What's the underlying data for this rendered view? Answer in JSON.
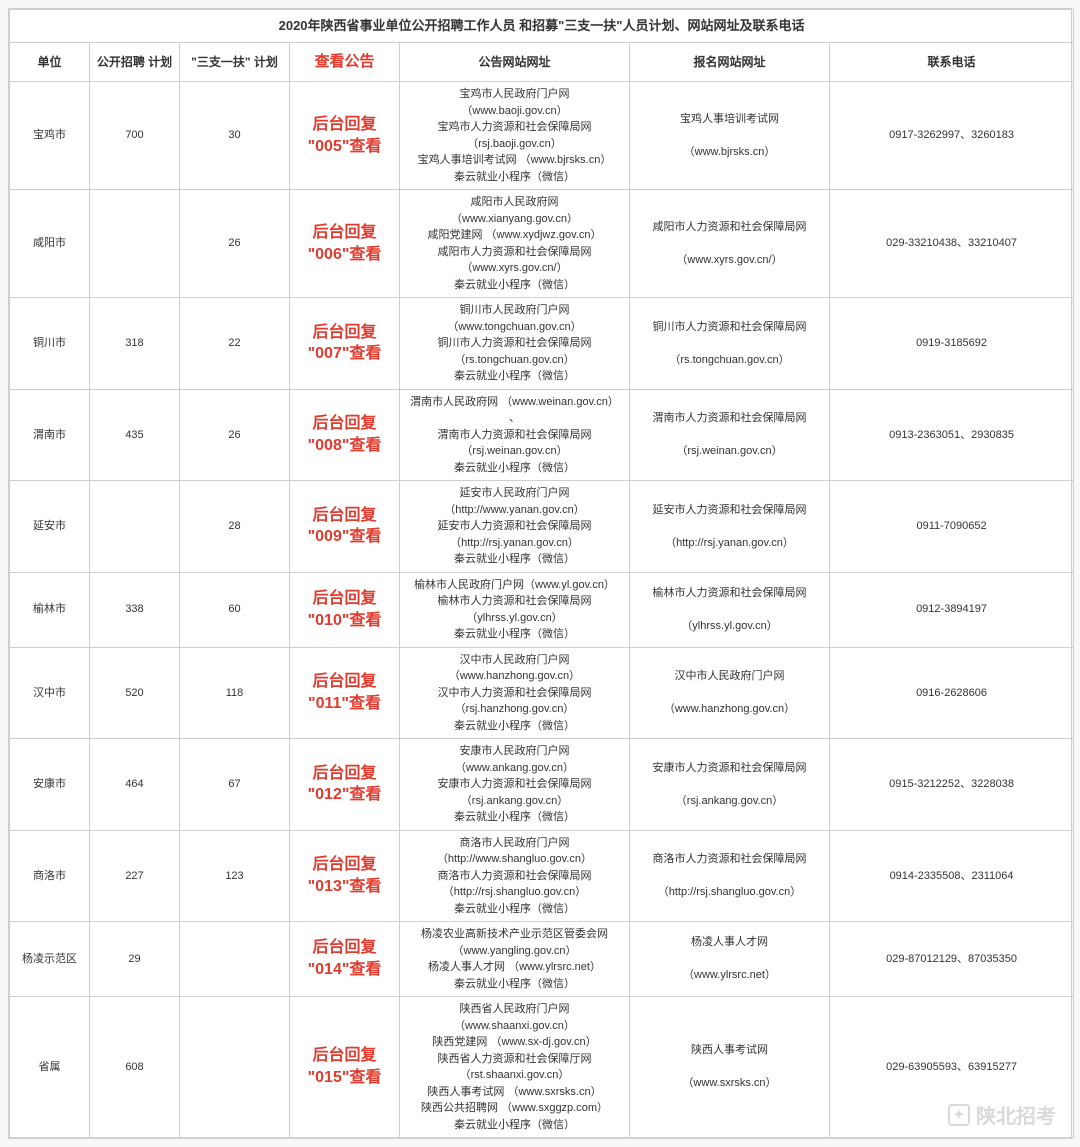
{
  "title": "2020年陕西省事业单位公开招聘工作人员 和招募\"三支一扶\"人员计划、网站网址及联系电话",
  "headers": {
    "unit": "单位",
    "public_plan": "公开招聘 计划",
    "szyf_plan": "\"三支一扶\" 计划",
    "view_notice": "查看公告",
    "notice_site": "公告网站网址",
    "signup_site": "报名网站网址",
    "phone": "联系电话"
  },
  "action_template": {
    "line1": "后台回复",
    "line2_prefix": "\"",
    "line2_suffix": "\"查看"
  },
  "rows": [
    {
      "unit": "宝鸡市",
      "public_plan": "700",
      "szyf_plan": "30",
      "code": "005",
      "notice": "宝鸡市人民政府门户网\n（www.baoji.gov.cn）\n宝鸡市人力资源和社会保障局网\n（rsj.baoji.gov.cn）\n宝鸡人事培训考试网 （www.bjrsks.cn）\n秦云就业小程序（微信）",
      "signup": "宝鸡人事培训考试网\n\n（www.bjrsks.cn）",
      "phone": "0917-3262997、3260183"
    },
    {
      "unit": "咸阳市",
      "public_plan": "",
      "szyf_plan": "26",
      "code": "006",
      "notice": "咸阳市人民政府网\n（www.xianyang.gov.cn）\n咸阳党建网 （www.xydjwz.gov.cn）\n咸阳市人力资源和社会保障局网\n（www.xyrs.gov.cn/）\n秦云就业小程序（微信）",
      "signup": "咸阳市人力资源和社会保障局网\n\n（www.xyrs.gov.cn/）",
      "phone": "029-33210438、33210407"
    },
    {
      "unit": "铜川市",
      "public_plan": "318",
      "szyf_plan": "22",
      "code": "007",
      "notice": "铜川市人民政府门户网\n（www.tongchuan.gov.cn）\n铜川市人力资源和社会保障局网\n（rs.tongchuan.gov.cn）\n秦云就业小程序（微信）",
      "signup": "铜川市人力资源和社会保障局网\n\n（rs.tongchuan.gov.cn）",
      "phone": "0919-3185692"
    },
    {
      "unit": "渭南市",
      "public_plan": "435",
      "szyf_plan": "26",
      "code": "008",
      "notice": "渭南市人民政府网 （www.weinan.gov.cn）\n、\n渭南市人力资源和社会保障局网\n（rsj.weinan.gov.cn）\n秦云就业小程序（微信）",
      "signup": "渭南市人力资源和社会保障局网\n\n（rsj.weinan.gov.cn）",
      "phone": "0913-2363051、2930835"
    },
    {
      "unit": "延安市",
      "public_plan": "",
      "szyf_plan": "28",
      "code": "009",
      "notice": "延安市人民政府门户网\n（http://www.yanan.gov.cn）\n延安市人力资源和社会保障局网\n（http://rsj.yanan.gov.cn）\n秦云就业小程序（微信）",
      "signup": "延安市人力资源和社会保障局网\n\n（http://rsj.yanan.gov.cn）",
      "phone": "0911-7090652"
    },
    {
      "unit": "榆林市",
      "public_plan": "338",
      "szyf_plan": "60",
      "code": "010",
      "notice": "榆林市人民政府门户网（www.yl.gov.cn）\n榆林市人力资源和社会保障局网\n（ylhrss.yl.gov.cn）\n秦云就业小程序（微信）",
      "signup": "榆林市人力资源和社会保障局网\n\n（ylhrss.yl.gov.cn）",
      "phone": "0912-3894197"
    },
    {
      "unit": "汉中市",
      "public_plan": "520",
      "szyf_plan": "118",
      "code": "011",
      "notice": "汉中市人民政府门户网\n（www.hanzhong.gov.cn）\n汉中市人力资源和社会保障局网\n（rsj.hanzhong.gov.cn）\n秦云就业小程序（微信）",
      "signup": "汉中市人民政府门户网\n\n（www.hanzhong.gov.cn）",
      "phone": "0916-2628606"
    },
    {
      "unit": "安康市",
      "public_plan": "464",
      "szyf_plan": "67",
      "code": "012",
      "notice": "安康市人民政府门户网\n（www.ankang.gov.cn）\n安康市人力资源和社会保障局网\n（rsj.ankang.gov.cn）\n秦云就业小程序（微信）",
      "signup": "安康市人力资源和社会保障局网\n\n（rsj.ankang.gov.cn）",
      "phone": "0915-3212252、3228038"
    },
    {
      "unit": "商洛市",
      "public_plan": "227",
      "szyf_plan": "123",
      "code": "013",
      "notice": "商洛市人民政府门户网\n（http://www.shangluo.gov.cn）\n商洛市人力资源和社会保障局网\n（http://rsj.shangluo.gov.cn）\n秦云就业小程序（微信）",
      "signup": "商洛市人力资源和社会保障局网\n\n（http://rsj.shangluo.gov.cn）",
      "phone": "0914-2335508、2311064"
    },
    {
      "unit": "杨凌示范区",
      "public_plan": "29",
      "szyf_plan": "",
      "code": "014",
      "notice": "杨凌农业高新技术产业示范区管委会网\n（www.yangling.gov.cn）\n杨凌人事人才网 （www.ylrsrc.net）\n秦云就业小程序（微信）",
      "signup": "杨凌人事人才网\n\n（www.ylrsrc.net）",
      "phone": "029-87012129、87035350"
    },
    {
      "unit": "省属",
      "public_plan": "608",
      "szyf_plan": "",
      "code": "015",
      "notice": "陕西省人民政府门户网\n（www.shaanxi.gov.cn）\n陕西党建网 （www.sx-dj.gov.cn）\n陕西省人力资源和社会保障厅网\n（rst.shaanxi.gov.cn）\n陕西人事考试网 （www.sxrsks.cn）\n陕西公共招聘网 （www.sxggzp.com）\n秦云就业小程序（微信）",
      "signup": "陕西人事考试网\n\n（www.sxrsks.cn）",
      "phone": "029-63905593、63915277"
    }
  ],
  "watermark": "陕北招考"
}
